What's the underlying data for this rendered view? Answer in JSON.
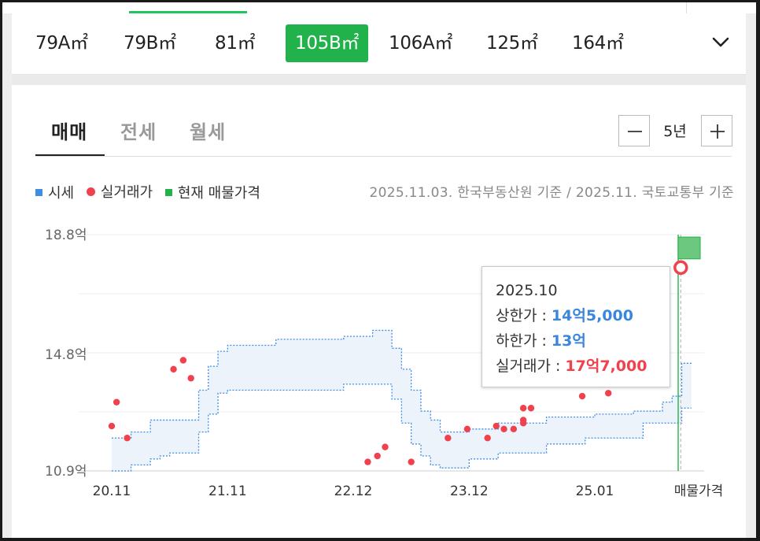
{
  "area_tabs": [
    {
      "label": "79A㎡",
      "active": false
    },
    {
      "label": "79B㎡",
      "active": false
    },
    {
      "label": "81㎡",
      "active": false
    },
    {
      "label": "105B㎡",
      "active": true
    },
    {
      "label": "106A㎡",
      "active": false
    },
    {
      "label": "125㎡",
      "active": false
    },
    {
      "label": "164㎡",
      "active": false
    }
  ],
  "deal_tabs": [
    "매매",
    "전세",
    "월세"
  ],
  "period": {
    "label": "5년"
  },
  "legend": [
    {
      "label": "시세",
      "color": "#3f8be6",
      "shape": "square"
    },
    {
      "label": "실거래가",
      "color": "#f0414d",
      "shape": "dot"
    },
    {
      "label": "현재 매물가격",
      "color": "#21b24b",
      "shape": "square"
    }
  ],
  "source_note": "2025.11.03. 한국부동산원 기준 / 2025.11. 국토교통부 기준",
  "tooltip": {
    "date": "2025.10",
    "upper_label": "상한가 : ",
    "upper_value": "14억5,000",
    "lower_label": "하한가 : ",
    "lower_value": "13억",
    "deal_label": "실거래가 : ",
    "deal_value": "17억7,000"
  },
  "chart_data": {
    "type": "area",
    "y_unit": "억",
    "y_ticks": [
      {
        "value": 10.9,
        "label": "10.9억"
      },
      {
        "value": 14.8,
        "label": "14.8억"
      },
      {
        "value": 18.8,
        "label": "18.8억"
      }
    ],
    "ylim": [
      10.9,
      18.8
    ],
    "x_ticks": [
      "20.11",
      "21.11",
      "22.12",
      "23.12",
      "25.01"
    ],
    "x_tick_months": [
      0,
      12,
      25,
      37,
      50
    ],
    "xlim_months": [
      0,
      60
    ],
    "extra_x_label": "매물가격",
    "grid": "horizontal",
    "series": [
      {
        "name": "시세",
        "type": "band",
        "color": "#3f8be6",
        "month": [
          0,
          1,
          2,
          3,
          4,
          5,
          6,
          7,
          8,
          9,
          10,
          11,
          12,
          13,
          14,
          15,
          16,
          17,
          18,
          19,
          20,
          21,
          22,
          23,
          24,
          25,
          26,
          27,
          28,
          29,
          30,
          31,
          32,
          33,
          34,
          35,
          36,
          37,
          38,
          39,
          40,
          41,
          42,
          43,
          44,
          45,
          46,
          47,
          48,
          49,
          50,
          51,
          52,
          53,
          54,
          55,
          56,
          57,
          58,
          59
        ],
        "upper": [
          12.0,
          12.0,
          12.2,
          12.2,
          12.6,
          12.6,
          12.6,
          12.6,
          12.6,
          13.6,
          14.4,
          14.9,
          15.1,
          15.1,
          15.1,
          15.1,
          15.1,
          15.3,
          15.3,
          15.3,
          15.3,
          15.3,
          15.3,
          15.3,
          15.4,
          15.4,
          15.4,
          15.6,
          15.6,
          15.0,
          14.3,
          13.6,
          12.9,
          12.6,
          12.2,
          12.2,
          12.2,
          12.3,
          12.3,
          12.3,
          12.5,
          12.5,
          12.5,
          12.5,
          12.5,
          12.7,
          12.7,
          12.7,
          12.7,
          12.7,
          12.8,
          12.8,
          12.8,
          12.8,
          12.9,
          12.9,
          12.9,
          13.2,
          13.4,
          14.5
        ],
        "lower": [
          10.9,
          10.9,
          11.1,
          11.1,
          11.3,
          11.4,
          11.5,
          11.5,
          11.5,
          12.2,
          12.8,
          13.5,
          13.6,
          13.6,
          13.6,
          13.6,
          13.6,
          13.6,
          13.6,
          13.6,
          13.6,
          13.6,
          13.6,
          13.6,
          13.8,
          13.8,
          13.8,
          13.8,
          13.8,
          13.3,
          12.5,
          11.8,
          11.4,
          11.1,
          11.0,
          11.0,
          11.0,
          11.3,
          11.3,
          11.3,
          11.5,
          11.5,
          11.5,
          11.5,
          11.5,
          11.8,
          11.8,
          11.8,
          11.8,
          12.0,
          12.0,
          12.0,
          12.0,
          12.0,
          12.0,
          12.5,
          12.5,
          12.5,
          12.5,
          13.0
        ]
      },
      {
        "name": "실거래가",
        "type": "scatter",
        "color": "#f0414d",
        "points": [
          {
            "month": 0.0,
            "value": 12.4
          },
          {
            "month": 0.5,
            "value": 13.2
          },
          {
            "month": 1.6,
            "value": 12.0
          },
          {
            "month": 6.4,
            "value": 14.3
          },
          {
            "month": 7.4,
            "value": 14.6
          },
          {
            "month": 8.2,
            "value": 14.0
          },
          {
            "month": 26.5,
            "value": 11.2
          },
          {
            "month": 27.5,
            "value": 11.4
          },
          {
            "month": 28.3,
            "value": 11.7
          },
          {
            "month": 31.0,
            "value": 11.2
          },
          {
            "month": 34.8,
            "value": 12.0
          },
          {
            "month": 36.8,
            "value": 12.3
          },
          {
            "month": 38.9,
            "value": 12.0
          },
          {
            "month": 39.8,
            "value": 12.4
          },
          {
            "month": 40.6,
            "value": 12.3
          },
          {
            "month": 41.6,
            "value": 12.3
          },
          {
            "month": 42.6,
            "value": 12.5
          },
          {
            "month": 42.6,
            "value": 12.6
          },
          {
            "month": 42.6,
            "value": 13.0
          },
          {
            "month": 43.4,
            "value": 13.0
          },
          {
            "month": 48.7,
            "value": 13.4
          },
          {
            "month": 50.6,
            "value": 13.8
          },
          {
            "month": 51.4,
            "value": 13.5
          },
          {
            "month": 58.9,
            "value": 17.7
          }
        ]
      },
      {
        "name": "현재 매물가격",
        "type": "bar",
        "color": "#21b24b",
        "min": 17.99,
        "max": 18.72
      }
    ]
  }
}
